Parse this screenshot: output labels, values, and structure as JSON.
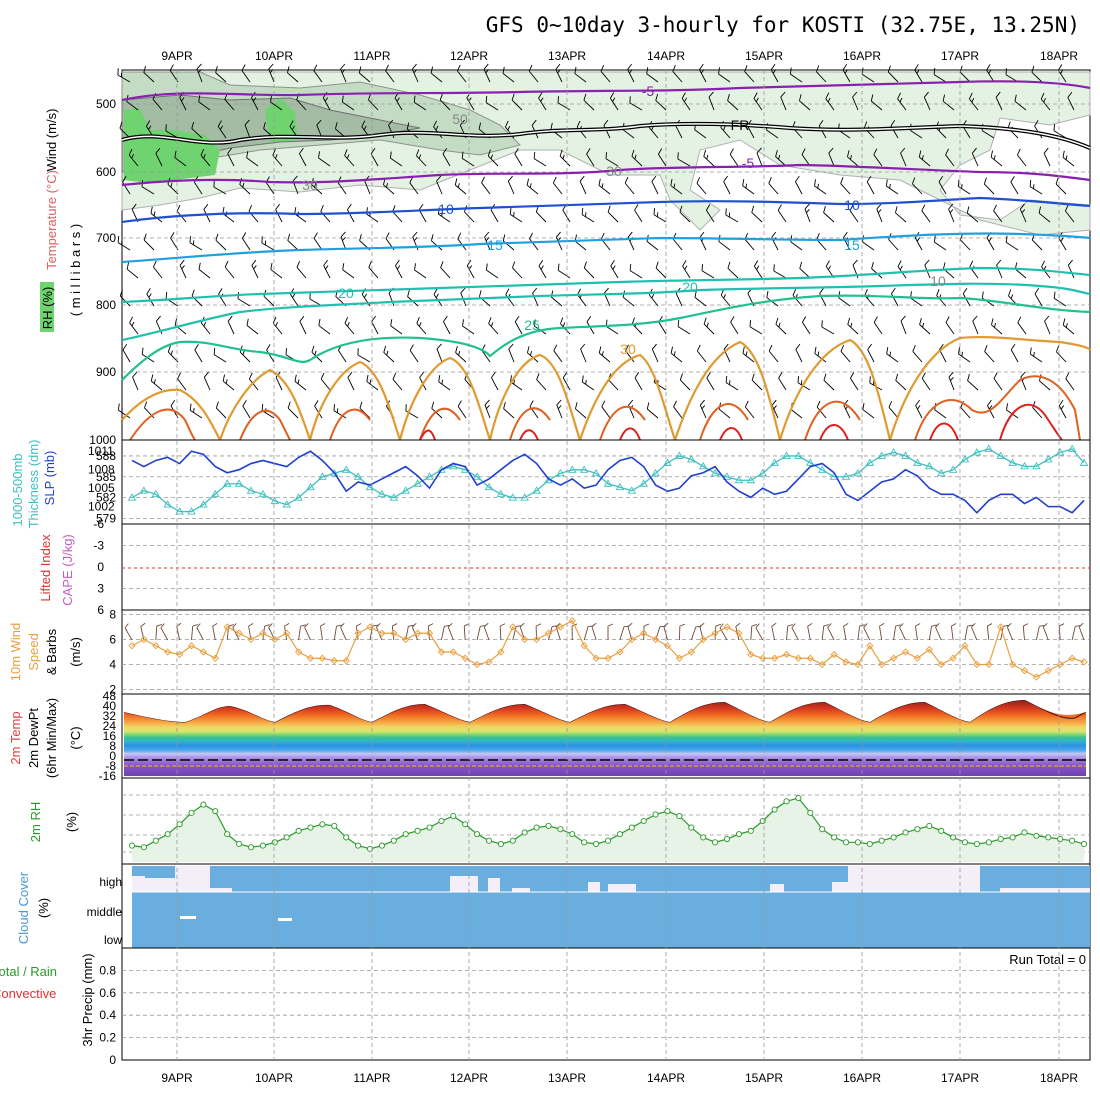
{
  "title": "GFS 0~10day 3-hourly for KOSTI (32.75E, 13.25N)",
  "date_labels": [
    "9APR",
    "10APR",
    "11APR",
    "12APR",
    "13APR",
    "14APR",
    "15APR",
    "16APR",
    "17APR",
    "18APR"
  ],
  "run_total": "Run Total = 0",
  "panels": {
    "upper": {
      "labels": {
        "wind": "Wind (m/s)",
        "temperature": "Temperature (°C)",
        "rh": "RH (%)",
        "millibars": "( m i l l i b a r s )"
      },
      "pressure_ticks": [
        "500",
        "600",
        "700",
        "800",
        "900",
        "1000"
      ],
      "contour_labels": [
        "-5",
        "FR",
        "-5",
        "10",
        "10",
        "15",
        "15",
        "20",
        "20",
        "25",
        "30",
        "50",
        "30",
        "30",
        "10"
      ]
    },
    "slp": {
      "labels": {
        "thickness": "1000-500mb",
        "thickness2": "Thickness (dm)",
        "slp": "SLP (mb)"
      },
      "left_ticks": [
        "588",
        "585",
        "582",
        "579"
      ],
      "right_ticks": [
        "1011",
        "1008",
        "1005",
        "1002"
      ]
    },
    "cape": {
      "labels": {
        "li": "Lifted Index",
        "cape": "CAPE (J/kg)"
      },
      "ticks": [
        "-6",
        "-3",
        "0",
        "3",
        "6"
      ]
    },
    "wind10": {
      "labels": {
        "a": "10m Wind",
        "b": "Speed",
        "c": "& Barbs",
        "unit": "(m/s)"
      },
      "ticks": [
        "8",
        "6",
        "4",
        "2"
      ]
    },
    "temp2m": {
      "labels": {
        "a": "2m Temp",
        "b": "2m DewPt",
        "c": "(6hr Min/Max)",
        "unit": "(°C)"
      },
      "ticks": [
        "48",
        "40",
        "32",
        "24",
        "16",
        "8",
        "0",
        "-8",
        "-16"
      ]
    },
    "rh2m": {
      "labels": {
        "a": "2m RH",
        "unit": "(%)"
      }
    },
    "cloud": {
      "labels": {
        "a": "Cloud Cover",
        "unit": "(%)"
      },
      "levels": [
        "high",
        "middle",
        "low"
      ]
    },
    "precip": {
      "labels": {
        "a": "Total / Rain",
        "b": "Convective",
        "c": "3hr Precip (mm)"
      },
      "ticks": [
        "0.8",
        "0.6",
        "0.4",
        "0.2",
        "0"
      ]
    }
  },
  "colors": {
    "slp": "#1f3fd0",
    "thickness": "#3fbfbf",
    "wind10": "#e8a040",
    "rh2m": "#2a9a2a",
    "cloud": "#6aaee0",
    "cape_zero": "#e03030"
  },
  "chart_data": [
    {
      "type": "line",
      "panel": "SLP / Thickness",
      "x_unit": "3-hour steps from 8APR 12Z",
      "series": [
        {
          "name": "SLP (mb)",
          "values": [
            1009.5,
            1008.5,
            1009.5,
            1010,
            1009,
            1011,
            1010.5,
            1008.5,
            1007.5,
            1008,
            1009,
            1009.5,
            1009,
            1008.5,
            1010,
            1011,
            1009.5,
            1007.5,
            1004.5,
            1006,
            1005.5,
            1006.5,
            1007.5,
            1008.5,
            1007,
            1005,
            1008,
            1009,
            1008.5,
            1005.5,
            1006.5,
            1008,
            1009.5,
            1010.5,
            1009,
            1006.5,
            1005.5,
            1006.5,
            1005,
            1005.5,
            1008,
            1009.5,
            1010,
            1008.5,
            1005.5,
            1004.5,
            1005,
            1007,
            1007.5,
            1008.5,
            1006,
            1004.5,
            1003.5,
            1005,
            1004,
            1004.5,
            1006.5,
            1008.5,
            1009,
            1007.5,
            1004,
            1003,
            1004.5,
            1006,
            1006.5,
            1008,
            1007,
            1005,
            1004,
            1004,
            1003,
            1001,
            1003,
            1004,
            1004,
            1002.5,
            1003.5,
            1002,
            1002,
            1001,
            1003
          ]
        },
        {
          "name": "Thickness (dm)",
          "values": [
            582,
            583,
            582.5,
            581,
            580,
            580,
            581,
            582.5,
            584,
            584,
            583,
            582.5,
            581.5,
            581,
            582,
            583.5,
            585,
            585.5,
            586,
            585,
            583.5,
            582.5,
            582,
            583,
            584,
            585,
            586,
            586.5,
            586,
            585,
            583.5,
            582.5,
            582,
            582,
            583,
            584.5,
            585.5,
            586,
            586,
            585.5,
            584,
            583.5,
            583,
            584,
            585.5,
            587,
            588,
            587.5,
            586.5,
            585.5,
            585,
            584.5,
            584.5,
            585.5,
            587,
            588,
            588,
            587,
            586,
            585,
            585,
            585.5,
            587,
            588,
            588.5,
            588,
            587,
            586.5,
            585.5,
            586,
            587.5,
            588.5,
            589,
            588,
            587,
            586.5,
            586.5,
            587.5,
            588.5,
            589,
            587
          ]
        }
      ]
    },
    {
      "type": "line",
      "panel": "10m Wind Speed",
      "values": [
        5.5,
        6,
        5.5,
        5,
        4.8,
        5.5,
        5,
        4.5,
        7,
        6.5,
        6,
        6.5,
        6,
        6.5,
        5,
        4.5,
        4.5,
        4.3,
        4.3,
        6.5,
        7,
        6.5,
        6.5,
        6,
        6.5,
        6.5,
        5,
        5,
        4.5,
        4,
        4.2,
        5,
        7,
        6,
        6,
        6.5,
        7,
        7.5,
        5.5,
        4.5,
        4.5,
        5,
        6,
        6.5,
        6,
        5.5,
        4.5,
        5,
        6,
        6.5,
        7,
        6.5,
        4.8,
        4.5,
        4.5,
        4.8,
        4.5,
        4.5,
        4,
        4.8,
        4.2,
        4,
        5.5,
        4,
        4.5,
        5,
        4.5,
        5.2,
        4,
        4.5,
        5.5,
        4,
        4,
        7,
        4,
        3.5,
        3,
        3.5,
        4,
        4.5,
        4.2
      ]
    },
    {
      "type": "line",
      "panel": "2m RH",
      "values": [
        35,
        34,
        38,
        42,
        48,
        55,
        60,
        56,
        42,
        36,
        34,
        35,
        37,
        40,
        44,
        46,
        48,
        47,
        40,
        35,
        33,
        35,
        38,
        42,
        44,
        46,
        50,
        53,
        48,
        42,
        38,
        36,
        38,
        43,
        46,
        47,
        45,
        42,
        37,
        36,
        38,
        42,
        46,
        50,
        54,
        56,
        53,
        46,
        40,
        37,
        39,
        42,
        44,
        50,
        57,
        62,
        64,
        55,
        45,
        40,
        37,
        37,
        36,
        38,
        40,
        43,
        45,
        47,
        44,
        40,
        37,
        36,
        37,
        39,
        40,
        43,
        41,
        40,
        39,
        38,
        36
      ]
    },
    {
      "type": "table",
      "panel": "Cloud Cover",
      "rows": [
        "high",
        "middle",
        "low"
      ],
      "note": "Cloud cover near 100% at all levels through most of the period"
    },
    {
      "type": "bar",
      "panel": "3hr Precip",
      "ylabel": "3hr Precip (mm)",
      "ylim": [
        0,
        1
      ],
      "values": []
    }
  ]
}
